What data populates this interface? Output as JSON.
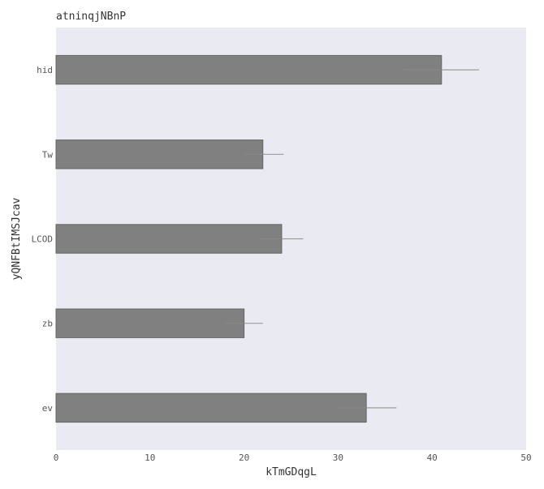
{
  "chart_data": {
    "type": "bar",
    "orientation": "horizontal",
    "title": "atninqjNBnP",
    "xlabel": "kTmGDqgL",
    "ylabel": "yQNFBtIMSJcav",
    "categories": [
      "hid",
      "Tw",
      "LCOD",
      "zb",
      "ev"
    ],
    "values": [
      41,
      22,
      24,
      20,
      33
    ],
    "error_low": [
      37,
      20,
      21.5,
      18,
      30
    ],
    "error_high": [
      45,
      24.2,
      26.3,
      22,
      36.2
    ],
    "xlim": [
      0,
      50
    ],
    "xticks": [
      0,
      10,
      20,
      30,
      40,
      50
    ],
    "grid": false,
    "colors": {
      "background": "#eaeaf2",
      "bar": "#808080",
      "bar_edge": "#666666",
      "error": "#888888"
    }
  }
}
